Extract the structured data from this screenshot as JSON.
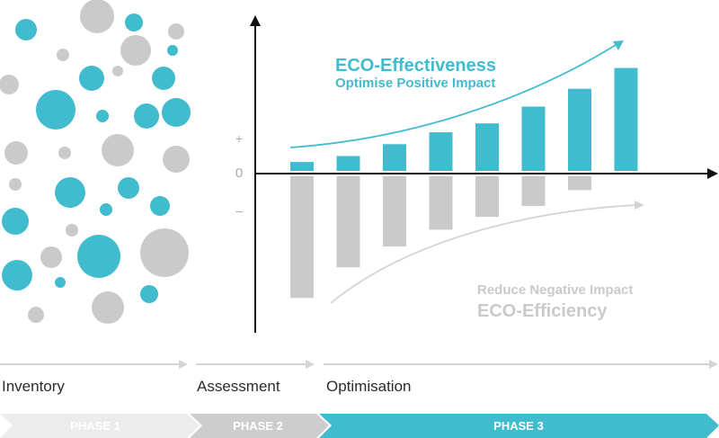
{
  "colors": {
    "teal": "#41bccf",
    "gray": "#cacaca",
    "axis": "#111111",
    "arrow_gray": "#d4d4d4",
    "phase1": "#ececec",
    "phase2": "#cdcdcd",
    "phase3": "#41bccf"
  },
  "axis_marks": {
    "plus": "+",
    "zero": "0",
    "minus": "–"
  },
  "effectiveness": {
    "title": "ECO-Effectiveness",
    "subtitle": "Optimise Positive Impact"
  },
  "efficiency": {
    "subtitle": "Reduce Negative Impact",
    "title": "ECO-Efficiency"
  },
  "chart_data": {
    "type": "bar",
    "series": [
      {
        "values": [
          0.9,
          1.5,
          2.7,
          3.9,
          4.8,
          6.5,
          8.3,
          10.4
        ]
      },
      {
        "values": [
          -12.3,
          -9.2,
          -7.1,
          -5.4,
          -4.1,
          -3.0,
          -1.4,
          0
        ]
      }
    ]
  },
  "phases": [
    {
      "label": "Inventory",
      "badge": "PHASE 1"
    },
    {
      "label": "Assessment",
      "badge": "PHASE 2"
    },
    {
      "label": "Optimisation",
      "badge": "PHASE 3"
    }
  ]
}
